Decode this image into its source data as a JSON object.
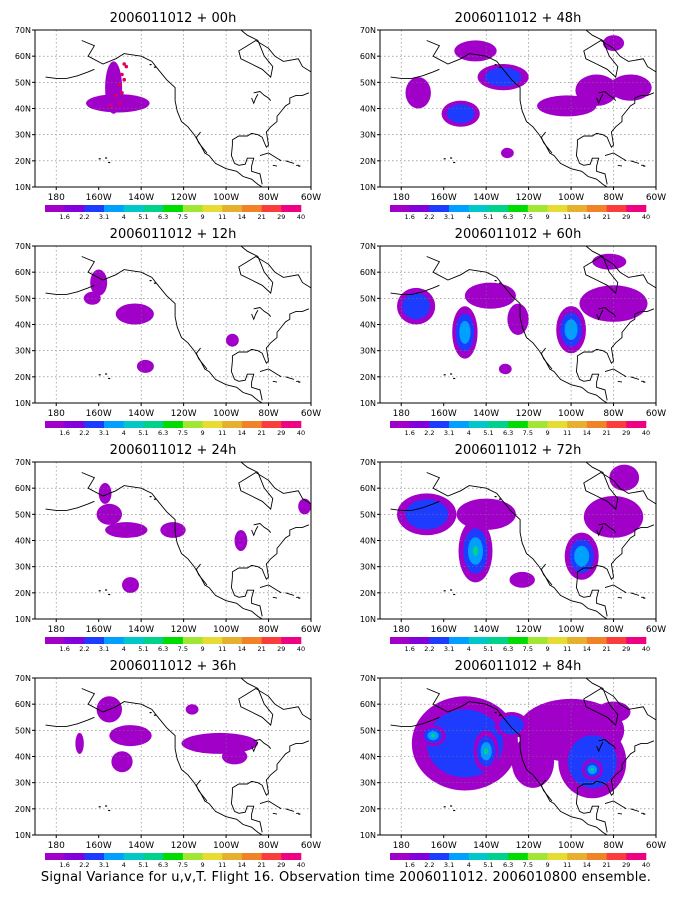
{
  "caption": "Signal Variance for u,v,T. Flight 16. Observation time 2006011012. 2006010800 ensemble.",
  "axes": {
    "y_ticks": [
      "10N",
      "20N",
      "30N",
      "40N",
      "50N",
      "60N",
      "70N"
    ],
    "x_ticks": [
      "180",
      "160W",
      "140W",
      "120W",
      "100W",
      "80W",
      "60W"
    ]
  },
  "colorbar": {
    "labels": [
      "1.6",
      "2.2",
      "3.1",
      "4",
      "5.1",
      "6.3",
      "7.5",
      "9",
      "11",
      "14",
      "21",
      "29",
      "40"
    ],
    "colors": [
      "#a000c8",
      "#8200dc",
      "#1e3cff",
      "#00a0ff",
      "#00c8c8",
      "#00d28c",
      "#00dc00",
      "#a0e632",
      "#e6dc32",
      "#e6af2d",
      "#f08228",
      "#fa3c3c",
      "#f00082"
    ]
  },
  "chart_data": [
    {
      "type": "heatmap",
      "title": "2006011012 + 00h",
      "x_range": [
        "170E",
        "60W"
      ],
      "y_range": [
        "10N",
        "70N"
      ],
      "blobs": [
        {
          "lon": -151,
          "lat": 42,
          "rx": 15,
          "ry": 3.5,
          "level": 2
        },
        {
          "lon": -153,
          "lat": 48,
          "rx": 4,
          "ry": 10,
          "level": 2
        }
      ],
      "observations": [
        {
          "lon": -148,
          "lat": 57
        },
        {
          "lon": -149,
          "lat": 53
        },
        {
          "lon": -150,
          "lat": 49
        },
        {
          "lon": -152,
          "lat": 45
        },
        {
          "lon": -154,
          "lat": 41
        },
        {
          "lon": -147,
          "lat": 56
        },
        {
          "lon": -148,
          "lat": 51
        },
        {
          "lon": -149,
          "lat": 46
        },
        {
          "lon": -150,
          "lat": 42
        }
      ]
    },
    {
      "type": "heatmap",
      "title": "2006011012 + 48h",
      "x_range": [
        "170E",
        "60W"
      ],
      "y_range": [
        "10N",
        "70N"
      ],
      "blobs": [
        {
          "lon": -172,
          "lat": 46,
          "rx": 6,
          "ry": 6,
          "level": 2
        },
        {
          "lon": -152,
          "lat": 38,
          "rx": 9,
          "ry": 5,
          "level": 3
        },
        {
          "lon": -145,
          "lat": 62,
          "rx": 10,
          "ry": 4,
          "level": 2
        },
        {
          "lon": -132,
          "lat": 52,
          "rx": 12,
          "ry": 5,
          "level": 3
        },
        {
          "lon": -102,
          "lat": 41,
          "rx": 14,
          "ry": 4,
          "level": 2
        },
        {
          "lon": -88,
          "lat": 47,
          "rx": 10,
          "ry": 6,
          "level": 2
        },
        {
          "lon": -72,
          "lat": 48,
          "rx": 10,
          "ry": 5,
          "level": 2
        },
        {
          "lon": -80,
          "lat": 65,
          "rx": 5,
          "ry": 3,
          "level": 2
        },
        {
          "lon": -130,
          "lat": 23,
          "rx": 3,
          "ry": 2,
          "level": 2
        }
      ]
    },
    {
      "type": "heatmap",
      "title": "2006011012 + 12h",
      "x_range": [
        "170E",
        "60W"
      ],
      "y_range": [
        "10N",
        "70N"
      ],
      "blobs": [
        {
          "lon": -160,
          "lat": 56,
          "rx": 4,
          "ry": 5,
          "level": 2
        },
        {
          "lon": -163,
          "lat": 50,
          "rx": 4,
          "ry": 2.5,
          "level": 2
        },
        {
          "lon": -143,
          "lat": 44,
          "rx": 9,
          "ry": 4,
          "level": 2
        },
        {
          "lon": -138,
          "lat": 24,
          "rx": 4,
          "ry": 2.5,
          "level": 2
        },
        {
          "lon": -97,
          "lat": 34,
          "rx": 3,
          "ry": 2.5,
          "level": 2
        }
      ]
    },
    {
      "type": "heatmap",
      "title": "2006011012 + 60h",
      "x_range": [
        "170E",
        "60W"
      ],
      "y_range": [
        "10N",
        "70N"
      ],
      "blobs": [
        {
          "lon": -173,
          "lat": 47,
          "rx": 9,
          "ry": 7,
          "level": 3
        },
        {
          "lon": -150,
          "lat": 37,
          "rx": 6,
          "ry": 10,
          "level": 4
        },
        {
          "lon": -138,
          "lat": 51,
          "rx": 12,
          "ry": 5,
          "level": 2
        },
        {
          "lon": -125,
          "lat": 42,
          "rx": 5,
          "ry": 6,
          "level": 2
        },
        {
          "lon": -100,
          "lat": 38,
          "rx": 7,
          "ry": 9,
          "level": 4
        },
        {
          "lon": -80,
          "lat": 48,
          "rx": 16,
          "ry": 7,
          "level": 2
        },
        {
          "lon": -82,
          "lat": 64,
          "rx": 8,
          "ry": 3,
          "level": 2
        },
        {
          "lon": -131,
          "lat": 23,
          "rx": 3,
          "ry": 2,
          "level": 2
        }
      ]
    },
    {
      "type": "heatmap",
      "title": "2006011012 + 24h",
      "x_range": [
        "170E",
        "60W"
      ],
      "y_range": [
        "10N",
        "70N"
      ],
      "blobs": [
        {
          "lon": -157,
          "lat": 58,
          "rx": 3,
          "ry": 4,
          "level": 2
        },
        {
          "lon": -155,
          "lat": 50,
          "rx": 6,
          "ry": 4,
          "level": 2
        },
        {
          "lon": -147,
          "lat": 44,
          "rx": 10,
          "ry": 3,
          "level": 2
        },
        {
          "lon": -125,
          "lat": 44,
          "rx": 6,
          "ry": 3,
          "level": 2
        },
        {
          "lon": -145,
          "lat": 23,
          "rx": 4,
          "ry": 3,
          "level": 2
        },
        {
          "lon": -93,
          "lat": 40,
          "rx": 3,
          "ry": 4,
          "level": 2
        },
        {
          "lon": -63,
          "lat": 53,
          "rx": 3,
          "ry": 3,
          "level": 2
        }
      ]
    },
    {
      "type": "heatmap",
      "title": "2006011012 + 72h",
      "x_range": [
        "170E",
        "60W"
      ],
      "y_range": [
        "10N",
        "70N"
      ],
      "blobs": [
        {
          "lon": -168,
          "lat": 50,
          "rx": 14,
          "ry": 8,
          "level": 3
        },
        {
          "lon": -145,
          "lat": 36,
          "rx": 8,
          "ry": 12,
          "level": 5
        },
        {
          "lon": -140,
          "lat": 50,
          "rx": 14,
          "ry": 6,
          "level": 2
        },
        {
          "lon": -123,
          "lat": 25,
          "rx": 6,
          "ry": 3,
          "level": 2
        },
        {
          "lon": -95,
          "lat": 34,
          "rx": 8,
          "ry": 9,
          "level": 4
        },
        {
          "lon": -80,
          "lat": 49,
          "rx": 14,
          "ry": 8,
          "level": 2
        },
        {
          "lon": -75,
          "lat": 64,
          "rx": 7,
          "ry": 5,
          "level": 2
        }
      ]
    },
    {
      "type": "heatmap",
      "title": "2006011012 + 36h",
      "x_range": [
        "170E",
        "60W"
      ],
      "y_range": [
        "10N",
        "70N"
      ],
      "blobs": [
        {
          "lon": -169,
          "lat": 45,
          "rx": 2,
          "ry": 4,
          "level": 2
        },
        {
          "lon": -155,
          "lat": 58,
          "rx": 6,
          "ry": 5,
          "level": 2
        },
        {
          "lon": -145,
          "lat": 48,
          "rx": 10,
          "ry": 4,
          "level": 2
        },
        {
          "lon": -149,
          "lat": 38,
          "rx": 5,
          "ry": 4,
          "level": 2
        },
        {
          "lon": -103,
          "lat": 45,
          "rx": 18,
          "ry": 4,
          "level": 2
        },
        {
          "lon": -96,
          "lat": 40,
          "rx": 6,
          "ry": 3,
          "level": 2
        },
        {
          "lon": -116,
          "lat": 58,
          "rx": 3,
          "ry": 2,
          "level": 2
        }
      ]
    },
    {
      "type": "heatmap",
      "title": "2006011012 + 84h",
      "x_range": [
        "170E",
        "60W"
      ],
      "y_range": [
        "10N",
        "70N"
      ],
      "blobs": [
        {
          "lon": -150,
          "lat": 45,
          "rx": 25,
          "ry": 18,
          "level": 3
        },
        {
          "lon": -165,
          "lat": 48,
          "rx": 6,
          "ry": 4,
          "level": 5
        },
        {
          "lon": -140,
          "lat": 42,
          "rx": 6,
          "ry": 8,
          "level": 5
        },
        {
          "lon": -128,
          "lat": 52,
          "rx": 8,
          "ry": 5,
          "level": 3
        },
        {
          "lon": -118,
          "lat": 38,
          "rx": 10,
          "ry": 10,
          "level": 2
        },
        {
          "lon": -90,
          "lat": 38,
          "rx": 16,
          "ry": 14,
          "level": 3
        },
        {
          "lon": -90,
          "lat": 35,
          "rx": 5,
          "ry": 4,
          "level": 6
        },
        {
          "lon": -100,
          "lat": 50,
          "rx": 25,
          "ry": 12,
          "level": 2
        },
        {
          "lon": -80,
          "lat": 57,
          "rx": 8,
          "ry": 4,
          "level": 2
        }
      ]
    }
  ]
}
